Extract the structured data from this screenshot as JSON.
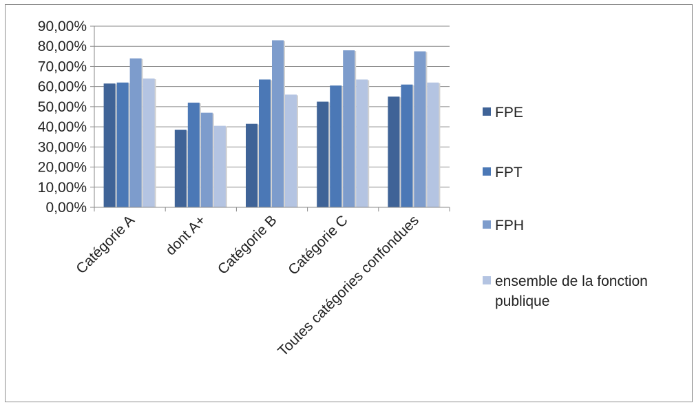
{
  "chart_data": {
    "type": "bar",
    "categories": [
      "Catégorie A",
      "dont A+",
      "Catégorie B",
      "Catégorie C",
      "Toutes catégories confondues"
    ],
    "series": [
      {
        "name": "FPE",
        "color": "#3f6397",
        "values": [
          61.5,
          38.5,
          41.5,
          52.5,
          55.0
        ]
      },
      {
        "name": "FPT",
        "color": "#4b78b6",
        "values": [
          62.0,
          52.0,
          63.5,
          60.5,
          61.0
        ]
      },
      {
        "name": "FPH",
        "color": "#7d9ccc",
        "values": [
          74.0,
          47.0,
          83.0,
          78.0,
          77.5
        ]
      },
      {
        "name": "ensemble de la fonction publique",
        "color": "#b4c4e2",
        "values": [
          64.0,
          40.5,
          56.0,
          63.5,
          62.0
        ]
      }
    ],
    "yticks": [
      "0,00%",
      "10,00%",
      "20,00%",
      "30,00%",
      "40,00%",
      "50,00%",
      "60,00%",
      "70,00%",
      "80,00%",
      "90,00%"
    ],
    "ylim": [
      0,
      90
    ],
    "grid": true,
    "legend_position": "right"
  }
}
